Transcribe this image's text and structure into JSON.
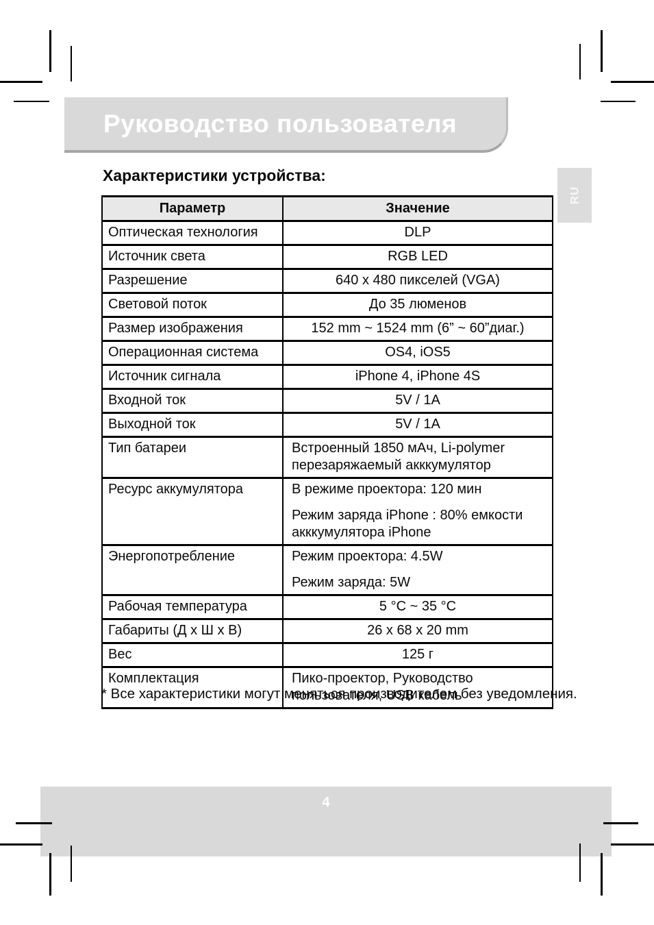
{
  "page": {
    "banner_title": "Руководство пользователя",
    "language_tab": "RU",
    "section_heading": "Характеристики устройства:",
    "footnote": "* Все характеристики могут меняться производителем без уведомления.",
    "page_number": "4"
  },
  "colors": {
    "banner_bg": "#d9d9d9",
    "banner_shadow": "#a6a6a6",
    "tab_bg": "#dcdcdc",
    "table_header_bg": "#e8e8e8",
    "table_border": "#000000",
    "text": "#0a0a0a",
    "banner_text": "#ffffff"
  },
  "table": {
    "headers": [
      "Параметр",
      "Значение"
    ],
    "rows": [
      {
        "param": "Оптическая технология",
        "value": [
          "DLP"
        ],
        "align": "center"
      },
      {
        "param": "Источник света",
        "value": [
          "RGB LED"
        ],
        "align": "center"
      },
      {
        "param": "Разрешение",
        "value": [
          "640 x 480 пикселей (VGA)"
        ],
        "align": "center"
      },
      {
        "param": "Световой поток",
        "value": [
          "До 35 люменов"
        ],
        "align": "center"
      },
      {
        "param": "Размер изображения",
        "value": [
          "152 mm ~ 1524 mm (6” ~ 60”диаг.)"
        ],
        "align": "center"
      },
      {
        "param": "Операционная система",
        "value": [
          "OS4, iOS5"
        ],
        "align": "center"
      },
      {
        "param": "Источник сигнала",
        "value": [
          "iPhone 4, iPhone 4S"
        ],
        "align": "center"
      },
      {
        "param": "Входной ток",
        "value": [
          "5V / 1A"
        ],
        "align": "center"
      },
      {
        "param": "Выходной ток",
        "value": [
          "5V / 1A"
        ],
        "align": "center"
      },
      {
        "param": "Тип батареи",
        "value": [
          "Встроенный 1850 мАч, Li-polymer перезаряжаемый акккумулятор"
        ],
        "align": "left"
      },
      {
        "param": "Ресурс аккумулятора",
        "value": [
          "В режиме проектора: 120 мин",
          "Режим заряда iPhone : 80% емкости акккумулятора iPhone"
        ],
        "align": "left"
      },
      {
        "param": "Энергопотребление",
        "value": [
          "Режим проектора: 4.5W",
          "Режим заряда: 5W"
        ],
        "align": "left"
      },
      {
        "param": "Рабочая температура",
        "value": [
          "5 °C ~ 35 °C"
        ],
        "align": "center"
      },
      {
        "param": "Габариты (Д x Ш x В)",
        "value": [
          "26 x 68 x 20 mm"
        ],
        "align": "center"
      },
      {
        "param": "Вес",
        "value": [
          "125 г"
        ],
        "align": "center"
      },
      {
        "param": "Комплектация",
        "value": [
          "Пико-проектор, Руководство пользователя, USB кабель"
        ],
        "align": "left"
      }
    ]
  }
}
